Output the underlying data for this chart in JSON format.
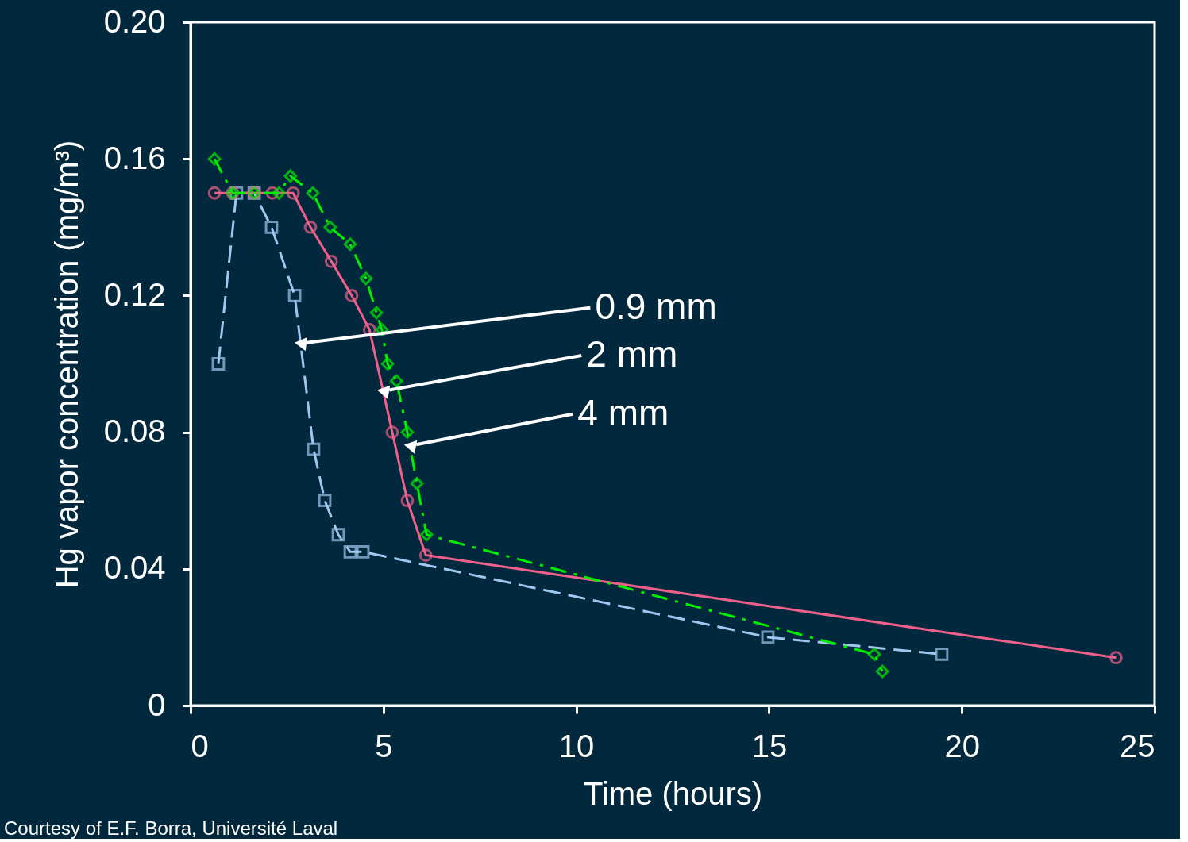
{
  "chart_data": {
    "type": "line",
    "xlabel": "Time (hours)",
    "ylabel": "Hg vapor concentration (mg/m³)",
    "xlim": [
      0,
      25
    ],
    "xticks": [
      0,
      5,
      10,
      15,
      20,
      25
    ],
    "ylim": [
      0,
      0.2
    ],
    "yticks": [
      0,
      0.04,
      0.08,
      0.12,
      0.16,
      {
        "value": 0.2,
        "label": "0.20"
      }
    ],
    "grid": false,
    "series": [
      {
        "color": "#9fc8f0",
        "marker": "square",
        "line_style": "dashed",
        "x": [
          0.72,
          1.19,
          1.65,
          2.1,
          2.7,
          3.19,
          3.48,
          3.83,
          4.14,
          4.47,
          14.97,
          19.48
        ],
        "values": [
          0.1,
          0.15,
          0.15,
          0.14,
          0.12,
          0.075,
          0.06,
          0.05,
          0.045,
          0.045,
          0.02,
          0.015
        ]
      },
      {
        "color": "#f0608a",
        "marker": "circle",
        "line_style": "solid",
        "x": [
          0.62,
          1.09,
          1.65,
          2.12,
          2.66,
          3.11,
          3.65,
          4.18,
          4.64,
          5.23,
          5.62,
          6.1,
          24.0
        ],
        "values": [
          0.15,
          0.15,
          0.15,
          0.15,
          0.15,
          0.14,
          0.13,
          0.12,
          0.11,
          0.08,
          0.06,
          0.044,
          0.014
        ]
      },
      {
        "color": "#00ee00",
        "marker": "diamond",
        "line_style": "dashdot",
        "x": [
          0.62,
          1.09,
          1.65,
          2.29,
          2.59,
          3.17,
          3.62,
          4.14,
          4.55,
          4.82,
          4.96,
          5.11,
          5.34,
          5.62,
          5.87,
          6.12,
          17.73,
          17.94
        ],
        "values": [
          0.16,
          0.15,
          0.15,
          0.15,
          0.155,
          0.15,
          0.14,
          0.135,
          0.125,
          0.115,
          0.11,
          0.1,
          0.095,
          0.08,
          0.065,
          0.05,
          0.015,
          0.01
        ]
      }
    ],
    "annotations": [
      {
        "text": "0.9 mm",
        "x": 2.85,
        "y": 0.106
      },
      {
        "text": "2 mm",
        "x": 4.99,
        "y": 0.092
      },
      {
        "text": "4 mm",
        "x": 5.69,
        "y": 0.076
      },
      "Courtesy of E.F. Borra, Université Laval"
    ]
  }
}
